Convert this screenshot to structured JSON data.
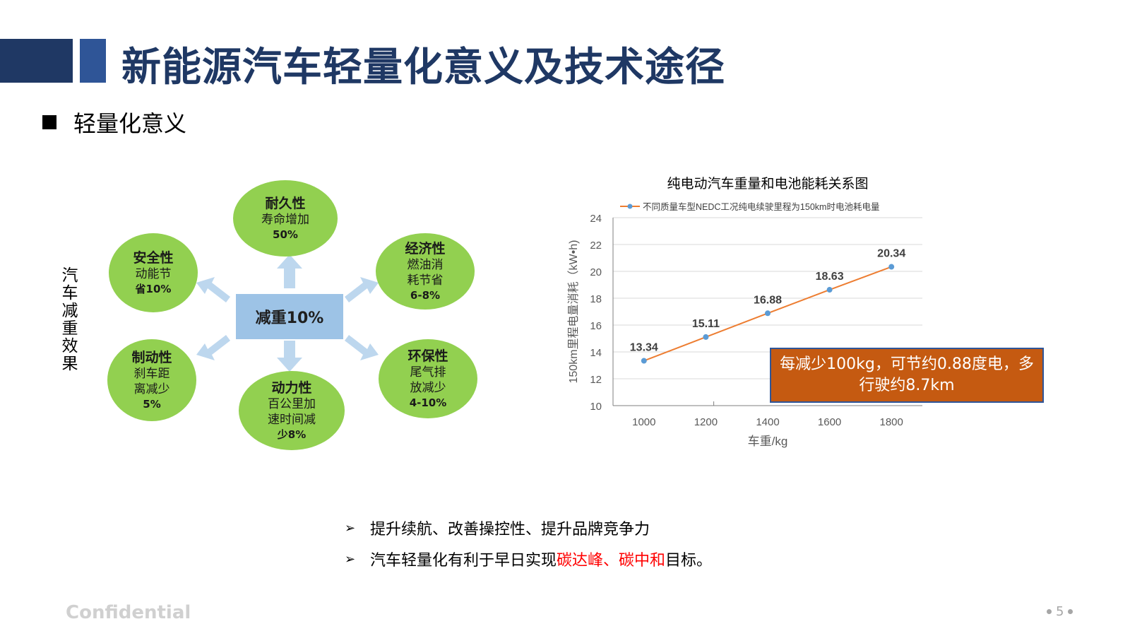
{
  "header": {
    "title": "新能源汽车轻量化意义及技术途径"
  },
  "section": {
    "title": "轻量化意义"
  },
  "diagram": {
    "side_label": [
      "汽",
      "车",
      "减",
      "重",
      "效",
      "果"
    ],
    "center": "减重10%",
    "nodes": [
      {
        "title": "耐久性",
        "lines": [
          "寿命增加"
        ],
        "value": "50%"
      },
      {
        "title": "经济性",
        "lines": [
          "燃油消",
          "耗节省"
        ],
        "value": "6-8%"
      },
      {
        "title": "环保性",
        "lines": [
          "尾气排",
          "放减少"
        ],
        "value": "4-10%"
      },
      {
        "title": "动力性",
        "lines": [
          "百公里加",
          "速时间减"
        ],
        "value": "少8%"
      },
      {
        "title": "制动性",
        "lines": [
          "刹车距",
          "离减少"
        ],
        "value": "5%"
      },
      {
        "title": "安全性",
        "lines": [
          "动能节"
        ],
        "value": "省10%"
      }
    ],
    "colors": {
      "node": "#92d050",
      "center": "#9dc3e6",
      "arrow": "#bdd7ee"
    }
  },
  "chart_data": {
    "type": "line",
    "title": "纯电动汽车重量和电池能耗关系图",
    "xlabel": "车重/kg",
    "ylabel": "150km里程电量消耗（kW•h)",
    "x": [
      1000,
      1200,
      1400,
      1600,
      1800
    ],
    "series": [
      {
        "name": "不同质量车型NEDC工况纯电续驶里程为150km时电池耗电量",
        "values": [
          13.34,
          15.11,
          16.88,
          18.63,
          20.34
        ],
        "color": "#ed7d31",
        "marker": "#5b9bd5"
      }
    ],
    "data_labels": [
      "13.34",
      "15.11",
      "16.88",
      "18.63",
      "20.34"
    ],
    "ylim": [
      10,
      24
    ],
    "yticks": [
      10,
      12,
      14,
      16,
      18,
      20,
      22,
      24
    ],
    "xlim": [
      900,
      1900
    ],
    "grid": true,
    "legend": "top",
    "annotation": "每减少100kg，可节约0.88度电，多行驶约8.7km"
  },
  "bullets": [
    {
      "marker": "➢",
      "text": "提升续航、改善操控性、提升品牌竞争力",
      "highlight": "",
      "suffix": ""
    },
    {
      "marker": "➢",
      "text": "汽车轻量化有利于早日实现",
      "highlight": "碳达峰、碳中和",
      "suffix": "目标。"
    }
  ],
  "footer": {
    "confidential": "Confidential",
    "page": "5"
  }
}
